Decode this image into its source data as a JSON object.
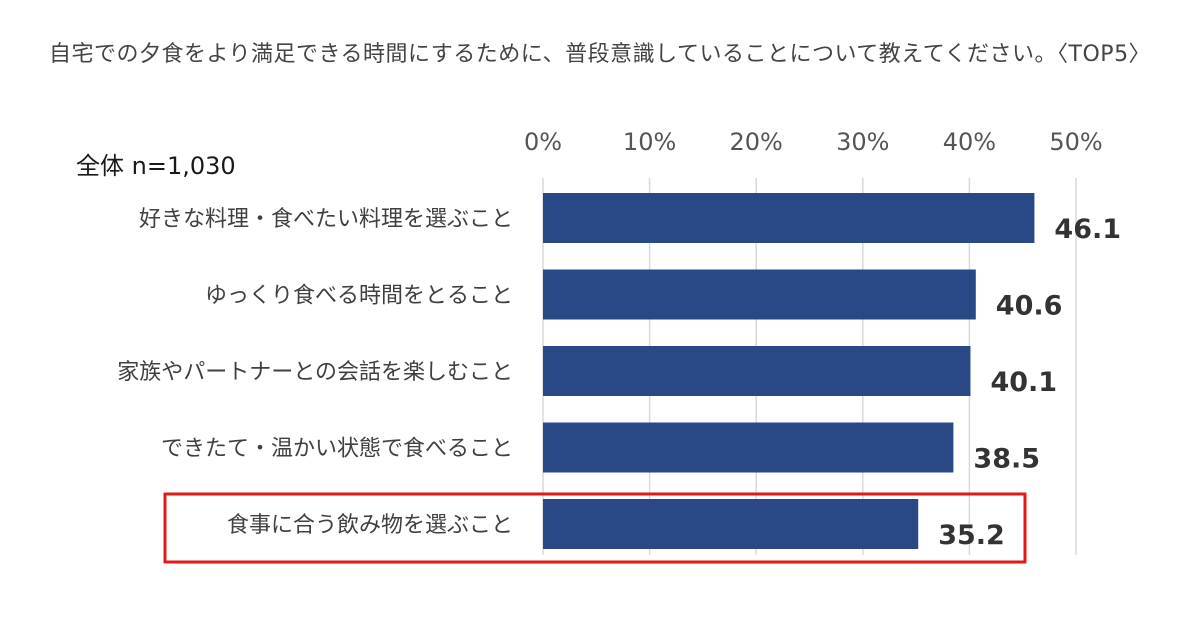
{
  "chart_data": {
    "type": "bar",
    "orientation": "horizontal",
    "title": "自宅での夕食をより満足できる時間にするために、普段意識していることについて教えてください。〈TOP5〉",
    "subtitle": "全体 n=1,030",
    "categories": [
      "好きな料理・食べたい料理を選ぶこと",
      "ゆっくり食べる時間をとること",
      "家族やパートナーとの会話を楽しむこと",
      "できたて・温かい状態で食べること",
      "食事に合う飲み物を選ぶこと"
    ],
    "values": [
      46.1,
      40.6,
      40.1,
      38.5,
      35.2
    ],
    "value_labels": [
      "46.1",
      "40.6",
      "40.1",
      "38.5",
      "35.2"
    ],
    "xlim": [
      0,
      50
    ],
    "x_ticks": [
      "0%",
      "10%",
      "20%",
      "30%",
      "40%",
      "50%"
    ],
    "x_tick_values": [
      0,
      10,
      20,
      30,
      40,
      50
    ],
    "x_axis_position": "top",
    "grid": true,
    "highlighted_category_index": 4,
    "colors": {
      "bar": "#2b4886",
      "highlight_border": "#e01a1a",
      "grid": "#d9d9d9"
    }
  }
}
